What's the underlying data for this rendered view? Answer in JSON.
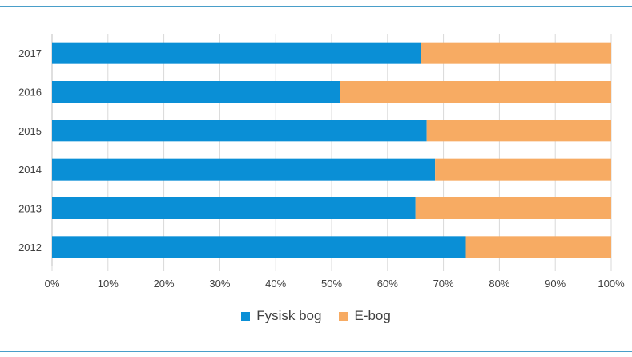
{
  "chart_data": {
    "type": "bar",
    "orientation": "horizontal",
    "stacked": true,
    "percent": true,
    "categories": [
      "2017",
      "2016",
      "2015",
      "2014",
      "2013",
      "2012"
    ],
    "series": [
      {
        "name": "Fysisk bog",
        "color": "#0a8fd6",
        "values": [
          66,
          51.5,
          67,
          68.5,
          65,
          74
        ]
      },
      {
        "name": "E-bog",
        "color": "#f7ab63",
        "values": [
          34,
          48.5,
          33,
          31.5,
          35,
          26
        ]
      }
    ],
    "x_ticks": [
      "0%",
      "10%",
      "20%",
      "30%",
      "40%",
      "50%",
      "60%",
      "70%",
      "80%",
      "90%",
      "100%"
    ],
    "xlim": [
      0,
      100
    ],
    "grid": true,
    "legend_position": "bottom",
    "title": "",
    "xlabel": "",
    "ylabel": ""
  }
}
